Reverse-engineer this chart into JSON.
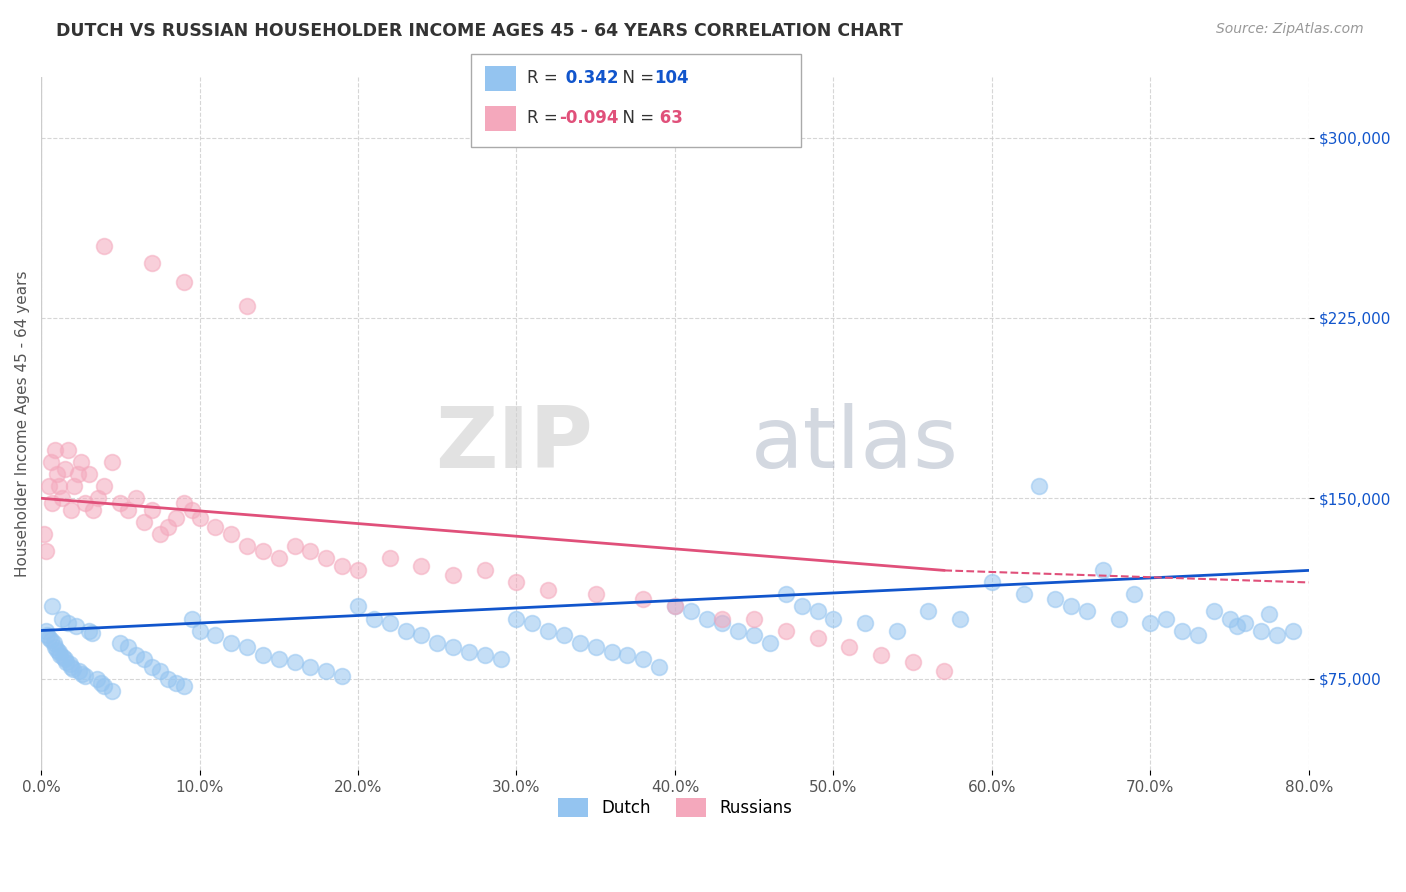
{
  "title": "DUTCH VS RUSSIAN HOUSEHOLDER INCOME AGES 45 - 64 YEARS CORRELATION CHART",
  "source": "Source: ZipAtlas.com",
  "ylabel": "Householder Income Ages 45 - 64 years",
  "watermark_zip": "ZIP",
  "watermark_atlas": "atlas",
  "xlim": [
    0.0,
    80.0
  ],
  "ylim": [
    37000,
    325000
  ],
  "yticks": [
    75000,
    150000,
    225000,
    300000
  ],
  "ytick_labels": [
    "$75,000",
    "$150,000",
    "$225,000",
    "$300,000"
  ],
  "xticks": [
    0.0,
    10.0,
    20.0,
    30.0,
    40.0,
    50.0,
    60.0,
    70.0,
    80.0
  ],
  "dutch_color": "#94C4F0",
  "russian_color": "#F4A8BC",
  "dutch_line_color": "#1155CC",
  "russian_line_color": "#E0507A",
  "dutch_R": 0.342,
  "dutch_N": 104,
  "russian_R": -0.094,
  "russian_N": 63,
  "background_color": "#ffffff",
  "dutch_x": [
    0.3,
    0.4,
    0.5,
    0.6,
    0.7,
    0.8,
    0.9,
    1.0,
    1.1,
    1.2,
    1.3,
    1.4,
    1.5,
    1.6,
    1.7,
    1.8,
    1.9,
    2.0,
    2.2,
    2.4,
    2.6,
    2.8,
    3.0,
    3.2,
    3.5,
    3.8,
    4.0,
    4.5,
    5.0,
    5.5,
    6.0,
    6.5,
    7.0,
    7.5,
    8.0,
    8.5,
    9.0,
    9.5,
    10.0,
    11.0,
    12.0,
    13.0,
    14.0,
    15.0,
    16.0,
    17.0,
    18.0,
    19.0,
    20.0,
    21.0,
    22.0,
    23.0,
    24.0,
    25.0,
    26.0,
    27.0,
    28.0,
    29.0,
    30.0,
    31.0,
    32.0,
    33.0,
    34.0,
    35.0,
    36.0,
    37.0,
    38.0,
    39.0,
    40.0,
    41.0,
    42.0,
    43.0,
    44.0,
    45.0,
    46.0,
    47.0,
    48.0,
    49.0,
    50.0,
    52.0,
    54.0,
    56.0,
    58.0,
    60.0,
    62.0,
    64.0,
    65.0,
    66.0,
    68.0,
    70.0,
    72.0,
    74.0,
    75.0,
    76.0,
    77.0,
    78.0,
    63.0,
    67.0,
    69.0,
    71.0,
    73.0,
    75.5,
    77.5,
    79.0
  ],
  "dutch_y": [
    95000,
    93000,
    92000,
    91000,
    105000,
    90000,
    88000,
    87000,
    86000,
    85000,
    100000,
    84000,
    83000,
    82000,
    98000,
    81000,
    80000,
    79000,
    97000,
    78000,
    77000,
    76000,
    95000,
    94000,
    75000,
    73000,
    72000,
    70000,
    90000,
    88000,
    85000,
    83000,
    80000,
    78000,
    75000,
    73000,
    72000,
    100000,
    95000,
    93000,
    90000,
    88000,
    85000,
    83000,
    82000,
    80000,
    78000,
    76000,
    105000,
    100000,
    98000,
    95000,
    93000,
    90000,
    88000,
    86000,
    85000,
    83000,
    100000,
    98000,
    95000,
    93000,
    90000,
    88000,
    86000,
    85000,
    83000,
    80000,
    105000,
    103000,
    100000,
    98000,
    95000,
    93000,
    90000,
    110000,
    105000,
    103000,
    100000,
    98000,
    95000,
    103000,
    100000,
    115000,
    110000,
    108000,
    105000,
    103000,
    100000,
    98000,
    95000,
    103000,
    100000,
    98000,
    95000,
    93000,
    155000,
    120000,
    110000,
    100000,
    93000,
    97000,
    102000,
    95000
  ],
  "russian_x": [
    0.2,
    0.3,
    0.5,
    0.6,
    0.7,
    0.9,
    1.0,
    1.1,
    1.3,
    1.5,
    1.7,
    1.9,
    2.1,
    2.3,
    2.5,
    2.8,
    3.0,
    3.3,
    3.6,
    4.0,
    4.5,
    5.0,
    5.5,
    6.0,
    6.5,
    7.0,
    7.5,
    8.0,
    8.5,
    9.0,
    9.5,
    10.0,
    11.0,
    12.0,
    13.0,
    14.0,
    15.0,
    16.0,
    17.0,
    18.0,
    19.0,
    20.0,
    22.0,
    24.0,
    26.0,
    28.0,
    30.0,
    32.0,
    35.0,
    38.0,
    40.0,
    43.0,
    45.0,
    47.0,
    49.0,
    51.0,
    53.0,
    55.0,
    57.0,
    4.0,
    7.0,
    9.0,
    13.0
  ],
  "russian_y": [
    135000,
    128000,
    155000,
    165000,
    148000,
    170000,
    160000,
    155000,
    150000,
    162000,
    170000,
    145000,
    155000,
    160000,
    165000,
    148000,
    160000,
    145000,
    150000,
    155000,
    165000,
    148000,
    145000,
    150000,
    140000,
    145000,
    135000,
    138000,
    142000,
    148000,
    145000,
    142000,
    138000,
    135000,
    130000,
    128000,
    125000,
    130000,
    128000,
    125000,
    122000,
    120000,
    125000,
    122000,
    118000,
    120000,
    115000,
    112000,
    110000,
    108000,
    105000,
    100000,
    100000,
    95000,
    92000,
    88000,
    85000,
    82000,
    78000,
    255000,
    248000,
    240000,
    230000
  ]
}
